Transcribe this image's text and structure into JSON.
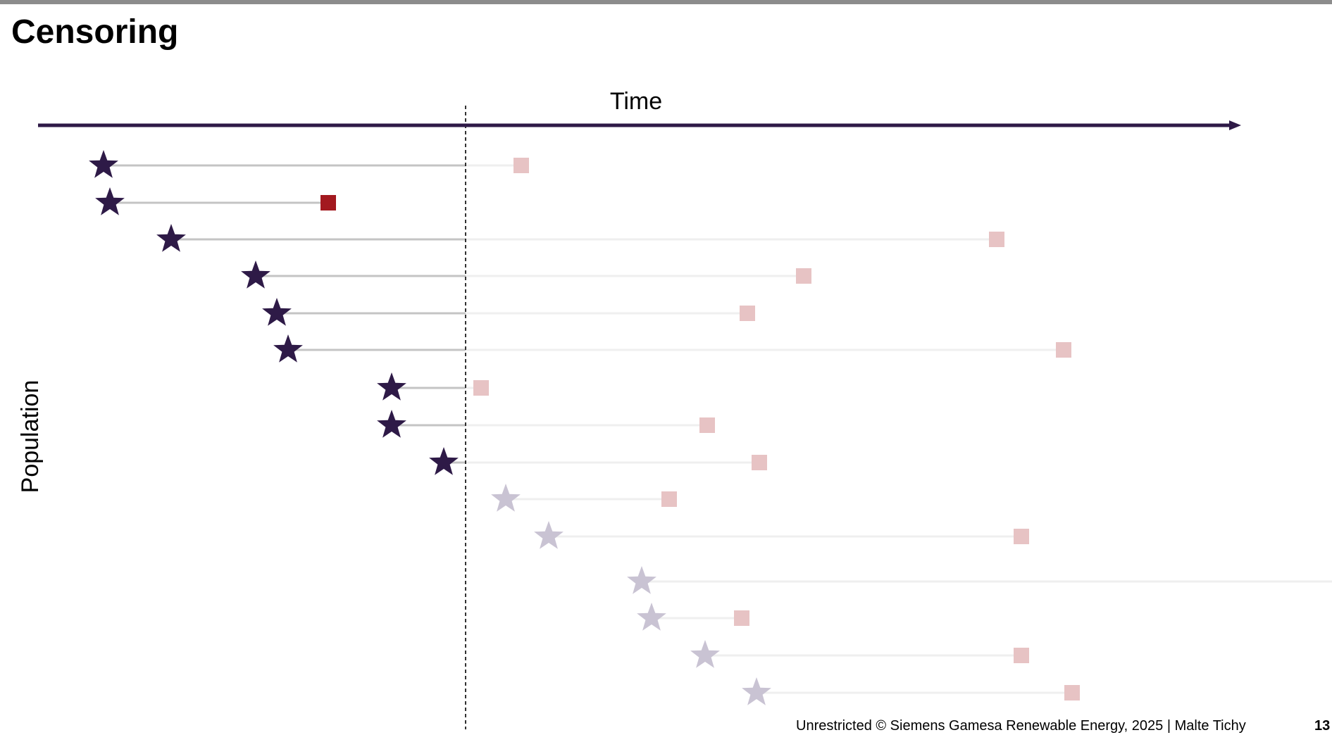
{
  "slide": {
    "title": "Censoring",
    "footer": "Unrestricted © Siemens Gamesa Renewable Energy, 2025 | Malte Tichy",
    "page_number": "13"
  },
  "diagram": {
    "time_label": "Time",
    "population_label": "Population",
    "colors": {
      "axis": "#2e1a47",
      "star_observed": "#2e1a47",
      "star_future": "#c9c3d3",
      "line_observed": "#c4c4c4",
      "line_future": "#efefef",
      "event_observed": "#a3191f",
      "event_future": "#e7c3c4",
      "cutoff": "#000000"
    }
  }
}
